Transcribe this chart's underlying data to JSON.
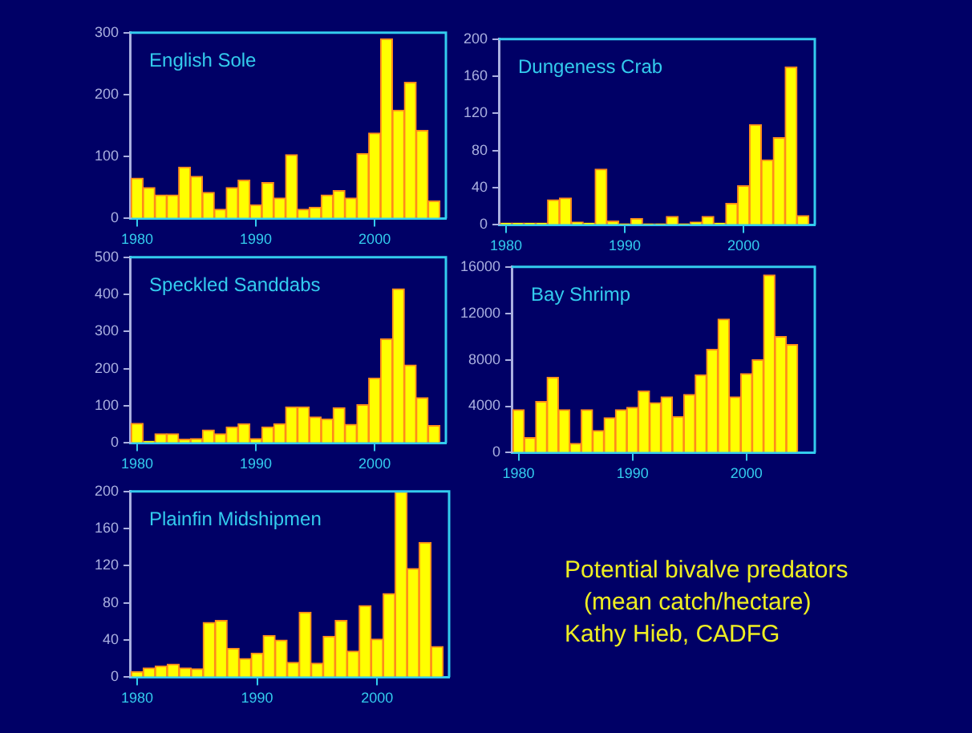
{
  "chart_data": [
    {
      "type": "bar",
      "title": "English Sole",
      "x": [
        1980,
        1981,
        1982,
        1983,
        1984,
        1985,
        1986,
        1987,
        1988,
        1989,
        1990,
        1991,
        1992,
        1993,
        1994,
        1995,
        1996,
        1997,
        1998,
        1999,
        2000,
        2001,
        2002,
        2003,
        2004,
        2005
      ],
      "values": [
        65,
        50,
        38,
        38,
        83,
        68,
        42,
        15,
        50,
        62,
        22,
        58,
        33,
        103,
        15,
        18,
        38,
        45,
        33,
        105,
        138,
        290,
        175,
        220,
        142,
        28
      ],
      "color": "#ffff00",
      "xlim": [
        1979.4,
        2006
      ],
      "xticks": [
        1980,
        1990,
        2000
      ],
      "ylim": [
        0,
        300
      ],
      "yticks": [
        0,
        100,
        200,
        300
      ],
      "grid": false
    },
    {
      "type": "bar",
      "title": "Dungeness Crab",
      "x": [
        1980,
        1981,
        1982,
        1983,
        1984,
        1985,
        1986,
        1987,
        1988,
        1989,
        1990,
        1991,
        1992,
        1993,
        1994,
        1995,
        1996,
        1997,
        1998,
        1999,
        2000,
        2001,
        2002,
        2003,
        2004,
        2005
      ],
      "values": [
        2,
        2,
        2,
        2,
        27,
        29,
        3,
        2,
        60,
        4,
        1,
        7,
        1,
        1,
        9,
        1,
        3,
        9,
        2,
        23,
        42,
        108,
        70,
        94,
        170,
        10
      ],
      "color": "#ffff00",
      "xlim": [
        1979.4,
        2006
      ],
      "xticks": [
        1980,
        1990,
        2000
      ],
      "ylim": [
        0,
        200
      ],
      "yticks": [
        0,
        40,
        80,
        120,
        160,
        200
      ],
      "grid": false
    },
    {
      "type": "bar",
      "title": "Speckled Sanddabs",
      "x": [
        1980,
        1981,
        1982,
        1983,
        1984,
        1985,
        1986,
        1987,
        1988,
        1989,
        1990,
        1991,
        1992,
        1993,
        1994,
        1995,
        1996,
        1997,
        1998,
        1999,
        2000,
        2001,
        2002,
        2003,
        2004,
        2005
      ],
      "values": [
        53,
        5,
        25,
        25,
        10,
        12,
        35,
        25,
        43,
        52,
        12,
        43,
        52,
        97,
        97,
        70,
        65,
        95,
        50,
        103,
        175,
        280,
        415,
        210,
        122,
        47
      ],
      "color": "#ffff00",
      "xlim": [
        1979.4,
        2006
      ],
      "xticks": [
        1980,
        1990,
        2000
      ],
      "ylim": [
        0,
        500
      ],
      "yticks": [
        0,
        100,
        200,
        300,
        400,
        500
      ],
      "grid": false
    },
    {
      "type": "bar",
      "title": "Bay Shrimp",
      "x": [
        1980,
        1981,
        1982,
        1983,
        1984,
        1985,
        1986,
        1987,
        1988,
        1989,
        1990,
        1991,
        1992,
        1993,
        1994,
        1995,
        1996,
        1997,
        1998,
        1999,
        2000,
        2001,
        2002,
        2003,
        2004
      ],
      "values": [
        3700,
        1300,
        4400,
        6500,
        3700,
        800,
        3700,
        1900,
        3000,
        3700,
        3900,
        5300,
        4300,
        4800,
        3100,
        5000,
        6700,
        8900,
        11500,
        4800,
        6800,
        8000,
        15300,
        10000,
        9300
      ],
      "color": "#ffff00",
      "xlim": [
        1979.4,
        2006
      ],
      "xticks": [
        1980,
        1990,
        2000
      ],
      "ylim": [
        0,
        16000
      ],
      "yticks": [
        0,
        4000,
        8000,
        12000,
        16000
      ],
      "grid": false
    },
    {
      "type": "bar",
      "title": "Plainfin Midshipmen",
      "x": [
        1980,
        1981,
        1982,
        1983,
        1984,
        1985,
        1986,
        1987,
        1988,
        1989,
        1990,
        1991,
        1992,
        1993,
        1994,
        1995,
        1996,
        1997,
        1998,
        1999,
        2000,
        2001,
        2002,
        2003,
        2004,
        2005
      ],
      "values": [
        6,
        10,
        12,
        14,
        10,
        9,
        59,
        61,
        31,
        20,
        26,
        45,
        40,
        16,
        70,
        15,
        44,
        61,
        28,
        77,
        41,
        90,
        200,
        117,
        145,
        33
      ],
      "color": "#ffff00",
      "xlim": [
        1979.4,
        2006
      ],
      "xticks": [
        1980,
        1990,
        2000
      ],
      "ylim": [
        0,
        200
      ],
      "yticks": [
        0,
        40,
        80,
        120,
        160,
        200
      ],
      "grid": false
    },
    {
      "type": "other",
      "annotations": [
        "Potential bivalve predators",
        "(mean catch/hectare)",
        "Kathy Hieb, CADFG"
      ]
    }
  ]
}
